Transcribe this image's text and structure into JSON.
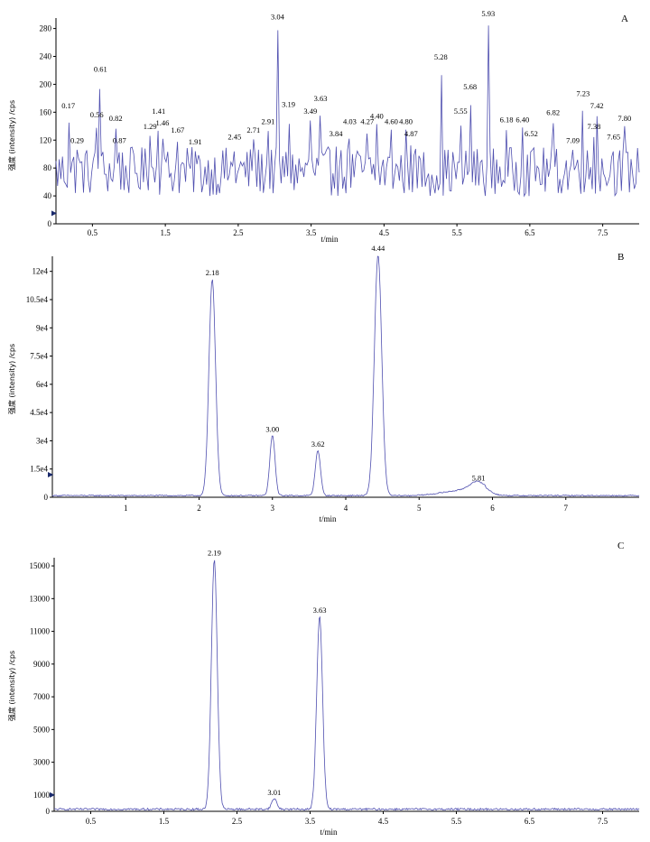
{
  "chart_data": [
    {
      "type": "line",
      "panel_label": "A",
      "xlabel": "t/min",
      "ylabel": "强度 (intensity) /cps",
      "xlim": [
        0.0,
        8.0
      ],
      "ylim": [
        0,
        295
      ],
      "xticks": [
        0.5,
        1.5,
        2.5,
        3.5,
        4.5,
        5.5,
        6.5,
        7.5
      ],
      "xtick_labels": [
        "0.5",
        "1.5",
        "2.5",
        "3.5",
        "4.5",
        "5.5",
        "6.5",
        "7.5"
      ],
      "yticks": [
        0,
        40,
        80,
        120,
        160,
        200,
        240,
        280
      ],
      "ytick_labels": [
        "0",
        "40",
        "80",
        "120",
        "160",
        "200",
        "240",
        "280"
      ],
      "grid": false,
      "color": "#5050b0",
      "baseline": 75,
      "noise": 22,
      "peaks": [
        {
          "x": 0.17,
          "y": 158,
          "label": "0.17"
        },
        {
          "x": 0.29,
          "y": 108,
          "label": "0.29"
        },
        {
          "x": 0.56,
          "y": 145,
          "label": "0.56"
        },
        {
          "x": 0.61,
          "y": 210,
          "label": "0.61"
        },
        {
          "x": 0.82,
          "y": 140,
          "label": "0.82"
        },
        {
          "x": 0.87,
          "y": 108,
          "label": "0.87"
        },
        {
          "x": 1.29,
          "y": 128,
          "label": "1.29"
        },
        {
          "x": 1.41,
          "y": 150,
          "label": "1.41"
        },
        {
          "x": 1.46,
          "y": 133,
          "label": "1.46"
        },
        {
          "x": 1.67,
          "y": 123,
          "label": "1.67"
        },
        {
          "x": 1.91,
          "y": 106,
          "label": "1.91"
        },
        {
          "x": 2.45,
          "y": 113,
          "label": "2.45"
        },
        {
          "x": 2.71,
          "y": 123,
          "label": "2.71"
        },
        {
          "x": 2.91,
          "y": 135,
          "label": "2.91"
        },
        {
          "x": 3.04,
          "y": 285,
          "label": "3.04"
        },
        {
          "x": 3.19,
          "y": 160,
          "label": "3.19"
        },
        {
          "x": 3.49,
          "y": 150,
          "label": "3.49"
        },
        {
          "x": 3.63,
          "y": 168,
          "label": "3.63"
        },
        {
          "x": 3.84,
          "y": 118,
          "label": "3.84"
        },
        {
          "x": 4.03,
          "y": 135,
          "label": "4.03"
        },
        {
          "x": 4.27,
          "y": 135,
          "label": "4.27"
        },
        {
          "x": 4.4,
          "y": 143,
          "label": "4.40"
        },
        {
          "x": 4.6,
          "y": 135,
          "label": "4.60"
        },
        {
          "x": 4.8,
          "y": 135,
          "label": "4.80"
        },
        {
          "x": 4.87,
          "y": 118,
          "label": "4.87"
        },
        {
          "x": 5.28,
          "y": 228,
          "label": "5.28"
        },
        {
          "x": 5.55,
          "y": 150,
          "label": "5.55"
        },
        {
          "x": 5.68,
          "y": 185,
          "label": "5.68"
        },
        {
          "x": 5.93,
          "y": 290,
          "label": "5.93"
        },
        {
          "x": 6.18,
          "y": 138,
          "label": "6.18"
        },
        {
          "x": 6.4,
          "y": 138,
          "label": "6.40"
        },
        {
          "x": 6.52,
          "y": 118,
          "label": "6.52"
        },
        {
          "x": 6.82,
          "y": 148,
          "label": "6.82"
        },
        {
          "x": 7.09,
          "y": 108,
          "label": "7.09"
        },
        {
          "x": 7.23,
          "y": 175,
          "label": "7.23"
        },
        {
          "x": 7.38,
          "y": 128,
          "label": "7.38"
        },
        {
          "x": 7.42,
          "y": 158,
          "label": "7.42"
        },
        {
          "x": 7.65,
          "y": 113,
          "label": "7.65"
        },
        {
          "x": 7.8,
          "y": 140,
          "label": "7.80"
        }
      ]
    },
    {
      "type": "line",
      "panel_label": "B",
      "xlabel": "t/min",
      "ylabel": "强度 (intensity) /cps",
      "xlim": [
        0.0,
        8.0
      ],
      "ylim": [
        0,
        128000
      ],
      "xticks": [
        1,
        2,
        3,
        4,
        5,
        6,
        7
      ],
      "xtick_labels": [
        "1",
        "2",
        "3",
        "4",
        "5",
        "6",
        "7"
      ],
      "yticks": [
        0,
        15000,
        30000,
        45000,
        60000,
        75000,
        90000,
        105000,
        120000
      ],
      "ytick_labels": [
        "0",
        "1.5e4",
        "3e4",
        "4.5e4",
        "6e4",
        "7.5e4",
        "9e4",
        "10.5e4",
        "12e4"
      ],
      "grid": false,
      "color": "#5050b0",
      "baseline": 900,
      "noise": 300,
      "peaks": [
        {
          "x": 2.18,
          "y": 115000,
          "width": 0.045,
          "label": "2.18"
        },
        {
          "x": 3.0,
          "y": 32000,
          "width": 0.035,
          "label": "3.00"
        },
        {
          "x": 3.62,
          "y": 24000,
          "width": 0.035,
          "label": "3.62"
        },
        {
          "x": 4.44,
          "y": 128000,
          "width": 0.05,
          "label": "4.44"
        },
        {
          "x": 5.81,
          "y": 6000,
          "width": 0.12,
          "label": "5.81"
        }
      ]
    },
    {
      "type": "line",
      "panel_label": "C",
      "xlabel": "t/min",
      "ylabel": "强度 (intensity) /cps",
      "xlim": [
        0.0,
        8.0
      ],
      "ylim": [
        0,
        15500
      ],
      "xticks": [
        0.5,
        1.5,
        2.5,
        3.5,
        4.5,
        5.5,
        6.5,
        7.5
      ],
      "xtick_labels": [
        "0.5",
        "1.5",
        "2.5",
        "3.5",
        "4.5",
        "5.5",
        "6.5",
        "7.5"
      ],
      "yticks": [
        0,
        1000,
        3000,
        5000,
        7000,
        9000,
        11000,
        13000,
        15000
      ],
      "ytick_labels": [
        "0",
        "1000",
        "3000",
        "5000",
        "7000",
        "9000",
        "11000",
        "13000",
        "15000"
      ],
      "grid": false,
      "color": "#5050b0",
      "baseline": 130,
      "noise": 60,
      "peaks": [
        {
          "x": 2.19,
          "y": 15300,
          "width": 0.04,
          "label": "2.19"
        },
        {
          "x": 3.01,
          "y": 650,
          "width": 0.035,
          "label": "3.01"
        },
        {
          "x": 3.63,
          "y": 11800,
          "width": 0.04,
          "label": "3.63"
        }
      ]
    }
  ]
}
